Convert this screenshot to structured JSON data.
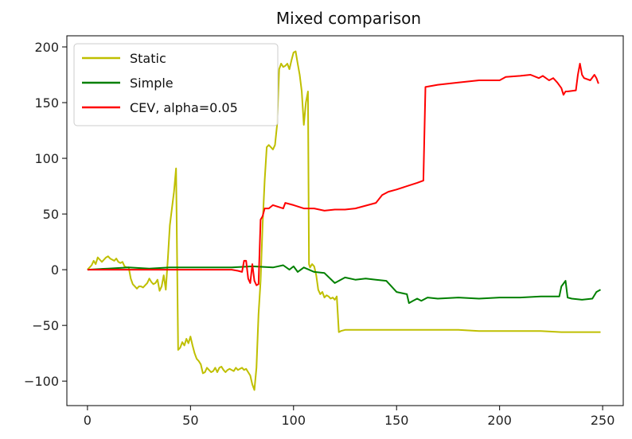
{
  "chart_data": {
    "type": "line",
    "title": "Mixed comparison",
    "xlabel": "",
    "ylabel": "",
    "xlim": [
      -10,
      260
    ],
    "ylim": [
      -122,
      210
    ],
    "x_ticks": [
      0,
      50,
      100,
      150,
      200,
      250
    ],
    "y_ticks": [
      -100,
      -50,
      0,
      50,
      100,
      150,
      200
    ],
    "grid": false,
    "legend_position": "top-left",
    "series": [
      {
        "name": "Static",
        "color": "#bfbf00",
        "points": [
          [
            0,
            0
          ],
          [
            2,
            4
          ],
          [
            3,
            8
          ],
          [
            4,
            5
          ],
          [
            5,
            11
          ],
          [
            6,
            9
          ],
          [
            7,
            7
          ],
          [
            8,
            9
          ],
          [
            9,
            11
          ],
          [
            10,
            12
          ],
          [
            11,
            10
          ],
          [
            12,
            9
          ],
          [
            13,
            8
          ],
          [
            14,
            10
          ],
          [
            15,
            7
          ],
          [
            16,
            6
          ],
          [
            17,
            7
          ],
          [
            18,
            3
          ],
          [
            19,
            2
          ],
          [
            20,
            2
          ],
          [
            21,
            -8
          ],
          [
            22,
            -13
          ],
          [
            23,
            -15
          ],
          [
            24,
            -17
          ],
          [
            25,
            -15
          ],
          [
            26,
            -15
          ],
          [
            27,
            -16
          ],
          [
            28,
            -14
          ],
          [
            29,
            -12
          ],
          [
            30,
            -8
          ],
          [
            31,
            -11
          ],
          [
            32,
            -13
          ],
          [
            33,
            -12
          ],
          [
            34,
            -9
          ],
          [
            35,
            -19
          ],
          [
            36,
            -15
          ],
          [
            37,
            -5
          ],
          [
            38,
            -18
          ],
          [
            39,
            10
          ],
          [
            40,
            40
          ],
          [
            41,
            55
          ],
          [
            42,
            70
          ],
          [
            43,
            91
          ],
          [
            44,
            -72
          ],
          [
            45,
            -70
          ],
          [
            46,
            -65
          ],
          [
            47,
            -68
          ],
          [
            48,
            -62
          ],
          [
            49,
            -66
          ],
          [
            50,
            -60
          ],
          [
            51,
            -68
          ],
          [
            52,
            -75
          ],
          [
            53,
            -80
          ],
          [
            54,
            -82
          ],
          [
            55,
            -85
          ],
          [
            56,
            -93
          ],
          [
            57,
            -92
          ],
          [
            58,
            -88
          ],
          [
            59,
            -90
          ],
          [
            60,
            -92
          ],
          [
            61,
            -91
          ],
          [
            62,
            -88
          ],
          [
            63,
            -92
          ],
          [
            64,
            -88
          ],
          [
            65,
            -87
          ],
          [
            66,
            -90
          ],
          [
            67,
            -92
          ],
          [
            68,
            -90
          ],
          [
            69,
            -89
          ],
          [
            70,
            -90
          ],
          [
            71,
            -91
          ],
          [
            72,
            -88
          ],
          [
            73,
            -90
          ],
          [
            74,
            -89
          ],
          [
            75,
            -88
          ],
          [
            76,
            -90
          ],
          [
            77,
            -89
          ],
          [
            78,
            -92
          ],
          [
            79,
            -95
          ],
          [
            80,
            -103
          ],
          [
            81,
            -108
          ],
          [
            82,
            -88
          ],
          [
            83,
            -40
          ],
          [
            84,
            -10
          ],
          [
            85,
            40
          ],
          [
            86,
            80
          ],
          [
            87,
            110
          ],
          [
            88,
            112
          ],
          [
            89,
            110
          ],
          [
            90,
            108
          ],
          [
            91,
            112
          ],
          [
            92,
            130
          ],
          [
            93,
            180
          ],
          [
            94,
            185
          ],
          [
            95,
            182
          ],
          [
            96,
            183
          ],
          [
            97,
            185
          ],
          [
            98,
            180
          ],
          [
            99,
            188
          ],
          [
            100,
            195
          ],
          [
            101,
            196
          ],
          [
            102,
            185
          ],
          [
            103,
            175
          ],
          [
            104,
            160
          ],
          [
            105,
            130
          ],
          [
            106,
            150
          ],
          [
            107,
            160
          ],
          [
            107.5,
            5
          ],
          [
            108,
            2
          ],
          [
            109,
            5
          ],
          [
            110,
            3
          ],
          [
            111,
            -5
          ],
          [
            112,
            -18
          ],
          [
            113,
            -22
          ],
          [
            114,
            -20
          ],
          [
            115,
            -25
          ],
          [
            116,
            -23
          ],
          [
            117,
            -24
          ],
          [
            118,
            -26
          ],
          [
            119,
            -25
          ],
          [
            120,
            -27
          ],
          [
            121,
            -24
          ],
          [
            122,
            -56
          ],
          [
            123,
            -55
          ],
          [
            125,
            -54
          ],
          [
            130,
            -54
          ],
          [
            140,
            -54
          ],
          [
            150,
            -54
          ],
          [
            160,
            -54
          ],
          [
            170,
            -54
          ],
          [
            180,
            -54
          ],
          [
            190,
            -55
          ],
          [
            200,
            -55
          ],
          [
            210,
            -55
          ],
          [
            220,
            -55
          ],
          [
            230,
            -56
          ],
          [
            240,
            -56
          ],
          [
            249,
            -56
          ]
        ]
      },
      {
        "name": "Simple",
        "color": "#008000",
        "points": [
          [
            0,
            0
          ],
          [
            10,
            1
          ],
          [
            20,
            2
          ],
          [
            30,
            1
          ],
          [
            40,
            2
          ],
          [
            50,
            2
          ],
          [
            60,
            2
          ],
          [
            70,
            2
          ],
          [
            80,
            3
          ],
          [
            90,
            2
          ],
          [
            95,
            4
          ],
          [
            98,
            0
          ],
          [
            100,
            3
          ],
          [
            102,
            -2
          ],
          [
            105,
            2
          ],
          [
            110,
            -2
          ],
          [
            115,
            -3
          ],
          [
            120,
            -12
          ],
          [
            125,
            -7
          ],
          [
            130,
            -9
          ],
          [
            135,
            -8
          ],
          [
            140,
            -9
          ],
          [
            145,
            -10
          ],
          [
            150,
            -20
          ],
          [
            155,
            -22
          ],
          [
            156,
            -30
          ],
          [
            158,
            -28
          ],
          [
            160,
            -26
          ],
          [
            162,
            -28
          ],
          [
            165,
            -25
          ],
          [
            170,
            -26
          ],
          [
            180,
            -25
          ],
          [
            190,
            -26
          ],
          [
            200,
            -25
          ],
          [
            210,
            -25
          ],
          [
            220,
            -24
          ],
          [
            229,
            -24
          ],
          [
            230,
            -15
          ],
          [
            232,
            -10
          ],
          [
            233,
            -25
          ],
          [
            235,
            -26
          ],
          [
            240,
            -27
          ],
          [
            245,
            -26
          ],
          [
            247,
            -20
          ],
          [
            249,
            -18
          ]
        ]
      },
      {
        "name": "CEV, alpha=0.05",
        "color": "#ff0000",
        "points": [
          [
            0,
            0
          ],
          [
            10,
            0
          ],
          [
            20,
            0
          ],
          [
            30,
            0
          ],
          [
            40,
            0
          ],
          [
            50,
            0
          ],
          [
            60,
            0
          ],
          [
            70,
            0
          ],
          [
            73,
            -1
          ],
          [
            75,
            -2
          ],
          [
            76,
            8
          ],
          [
            77,
            8
          ],
          [
            78,
            -8
          ],
          [
            79,
            -12
          ],
          [
            80,
            5
          ],
          [
            81,
            -10
          ],
          [
            82,
            -14
          ],
          [
            83,
            -13
          ],
          [
            84,
            45
          ],
          [
            85,
            48
          ],
          [
            86,
            55
          ],
          [
            88,
            55
          ],
          [
            90,
            58
          ],
          [
            95,
            55
          ],
          [
            96,
            60
          ],
          [
            100,
            58
          ],
          [
            105,
            55
          ],
          [
            110,
            55
          ],
          [
            115,
            53
          ],
          [
            120,
            54
          ],
          [
            125,
            54
          ],
          [
            130,
            55
          ],
          [
            140,
            60
          ],
          [
            143,
            67
          ],
          [
            146,
            70
          ],
          [
            150,
            72
          ],
          [
            155,
            75
          ],
          [
            160,
            78
          ],
          [
            163,
            80
          ],
          [
            164,
            164
          ],
          [
            170,
            166
          ],
          [
            180,
            168
          ],
          [
            190,
            170
          ],
          [
            200,
            170
          ],
          [
            203,
            173
          ],
          [
            210,
            174
          ],
          [
            215,
            175
          ],
          [
            219,
            172
          ],
          [
            221,
            174
          ],
          [
            224,
            170
          ],
          [
            226,
            172
          ],
          [
            228,
            168
          ],
          [
            230,
            163
          ],
          [
            231,
            157
          ],
          [
            232,
            160
          ],
          [
            233,
            160
          ],
          [
            237,
            161
          ],
          [
            238,
            175
          ],
          [
            239,
            185
          ],
          [
            240,
            175
          ],
          [
            241,
            172
          ],
          [
            244,
            170
          ],
          [
            246,
            175
          ],
          [
            247,
            172
          ],
          [
            248,
            167
          ]
        ]
      }
    ]
  }
}
